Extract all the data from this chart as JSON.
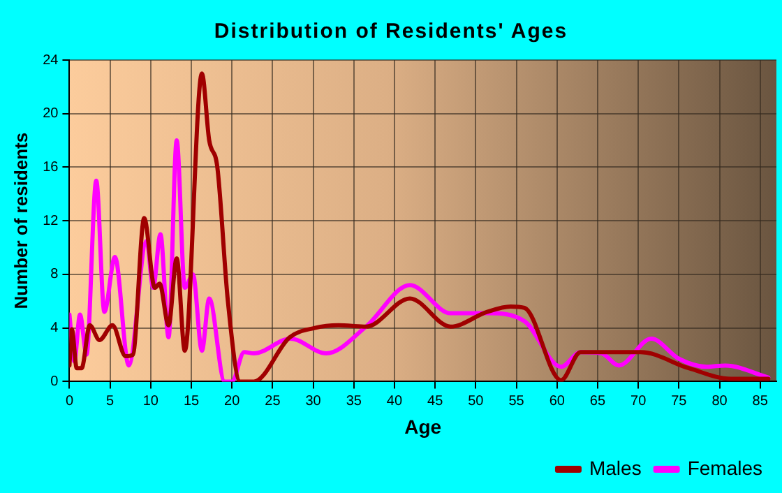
{
  "chart_data": {
    "type": "line",
    "title": "Distribution of Residents' Ages",
    "xlabel": "Age",
    "ylabel": "Number of residents",
    "xlim": [
      0,
      87
    ],
    "xticks": [
      0,
      5,
      10,
      15,
      20,
      25,
      30,
      35,
      40,
      45,
      50,
      55,
      60,
      65,
      70,
      75,
      80,
      85
    ],
    "ylim": [
      0,
      24
    ],
    "yticks": [
      0,
      4,
      8,
      12,
      16,
      20,
      24
    ],
    "grid": true,
    "legend": "bottom right",
    "marker": "none",
    "line_style": "solid",
    "series": [
      {
        "name": "Males",
        "color": "#a00000",
        "x": [
          0,
          0.3,
          0.9,
          1.5,
          2.5,
          3.7,
          5.3,
          6.9,
          7.8,
          9.2,
          10.5,
          11.1,
          12.2,
          13.2,
          14.2,
          16.3,
          17.2,
          18.2,
          19.5,
          21,
          22.7,
          27.1,
          30.2,
          33.1,
          36.5,
          41.9,
          46.9,
          51.4,
          54.3,
          56,
          60.5,
          62.9,
          70.3,
          76.2,
          81.4,
          86
        ],
        "values": [
          1.2,
          3.9,
          1,
          1,
          4.2,
          3.1,
          4.2,
          1.9,
          2,
          12.2,
          7,
          7.3,
          4.2,
          9.2,
          2.3,
          23,
          18,
          16,
          6,
          0,
          0,
          3.3,
          4,
          4.2,
          4.1,
          6.2,
          4.1,
          5.2,
          5.6,
          5.5,
          0.1,
          2.2,
          2.2,
          1,
          0.2,
          0.2
        ]
      },
      {
        "name": "Females",
        "color": "#ff00ff",
        "x": [
          0,
          0.6,
          1.3,
          2.1,
          3.3,
          4.3,
          5.6,
          7.3,
          9.5,
          10.3,
          11.2,
          12.2,
          13.2,
          14.2,
          15.2,
          16.3,
          17.2,
          19.1,
          20,
          21.5,
          22.7,
          27.2,
          31.6,
          36.5,
          41.9,
          46.9,
          51.5,
          56,
          60.5,
          62.9,
          65.5,
          67.6,
          71.6,
          75,
          78.4,
          80.7,
          86
        ],
        "values": [
          5,
          1.5,
          5,
          2,
          15,
          5.2,
          9.3,
          1.2,
          10.5,
          7,
          11,
          3.3,
          18,
          7,
          8,
          2.3,
          6.2,
          0,
          0,
          2.2,
          2.1,
          3.2,
          2.1,
          4.1,
          7.2,
          5.1,
          5.1,
          4.5,
          1.1,
          2.2,
          2.1,
          1.2,
          3.2,
          1.7,
          1.1,
          1.2,
          0.3
        ]
      }
    ]
  }
}
